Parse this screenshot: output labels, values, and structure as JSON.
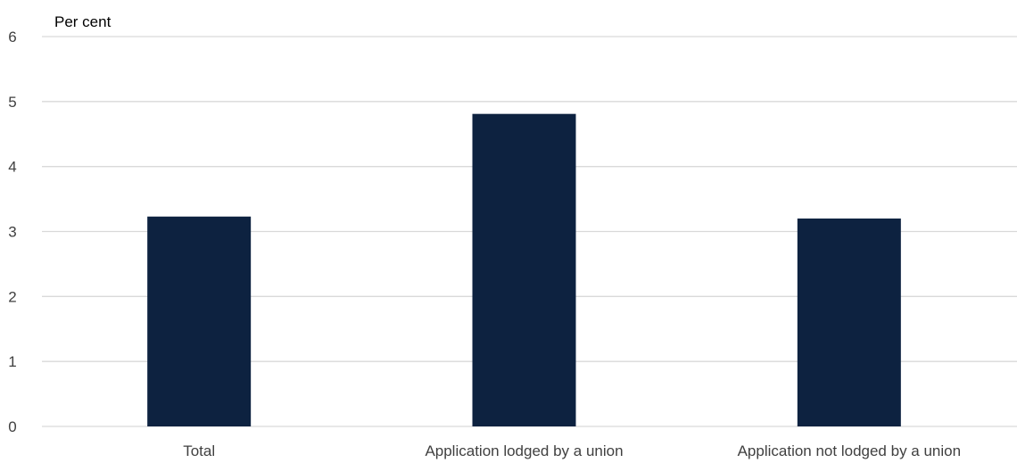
{
  "chart_data": {
    "type": "bar",
    "title": "",
    "xlabel": "",
    "ylabel": "Per cent",
    "categories": [
      "Total",
      "Application lodged by a union",
      "Application not lodged by a union"
    ],
    "values": [
      3.23,
      4.81,
      3.2
    ],
    "ylim": [
      0,
      6
    ],
    "yticks": [
      0,
      1,
      2,
      3,
      4,
      5,
      6
    ],
    "grid": true,
    "legend": "none",
    "bar_color": "#0d2240",
    "grid_color": "#d9d9d9",
    "text_color": "#404040"
  }
}
